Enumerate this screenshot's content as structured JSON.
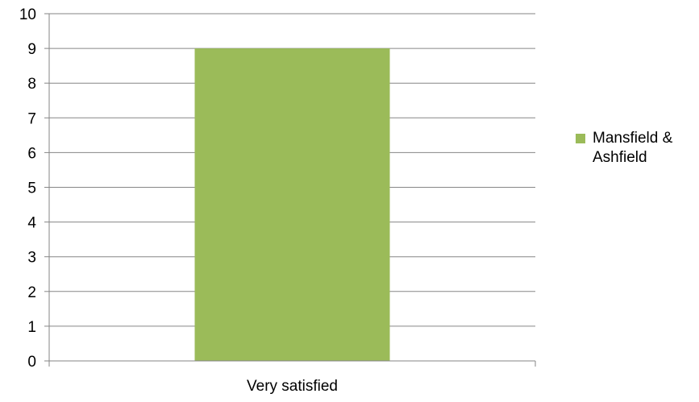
{
  "chart_data": {
    "type": "bar",
    "categories": [
      "Very satisfied"
    ],
    "series": [
      {
        "name": "Mansfield & Ashfield",
        "values": [
          9
        ],
        "color": "#9BBB59"
      }
    ],
    "ylim": [
      0,
      10
    ],
    "yticks": [
      0,
      1,
      2,
      3,
      4,
      5,
      6,
      7,
      8,
      9,
      10
    ],
    "grid": true,
    "legend_position": "right",
    "gridline_color": "#868686"
  }
}
